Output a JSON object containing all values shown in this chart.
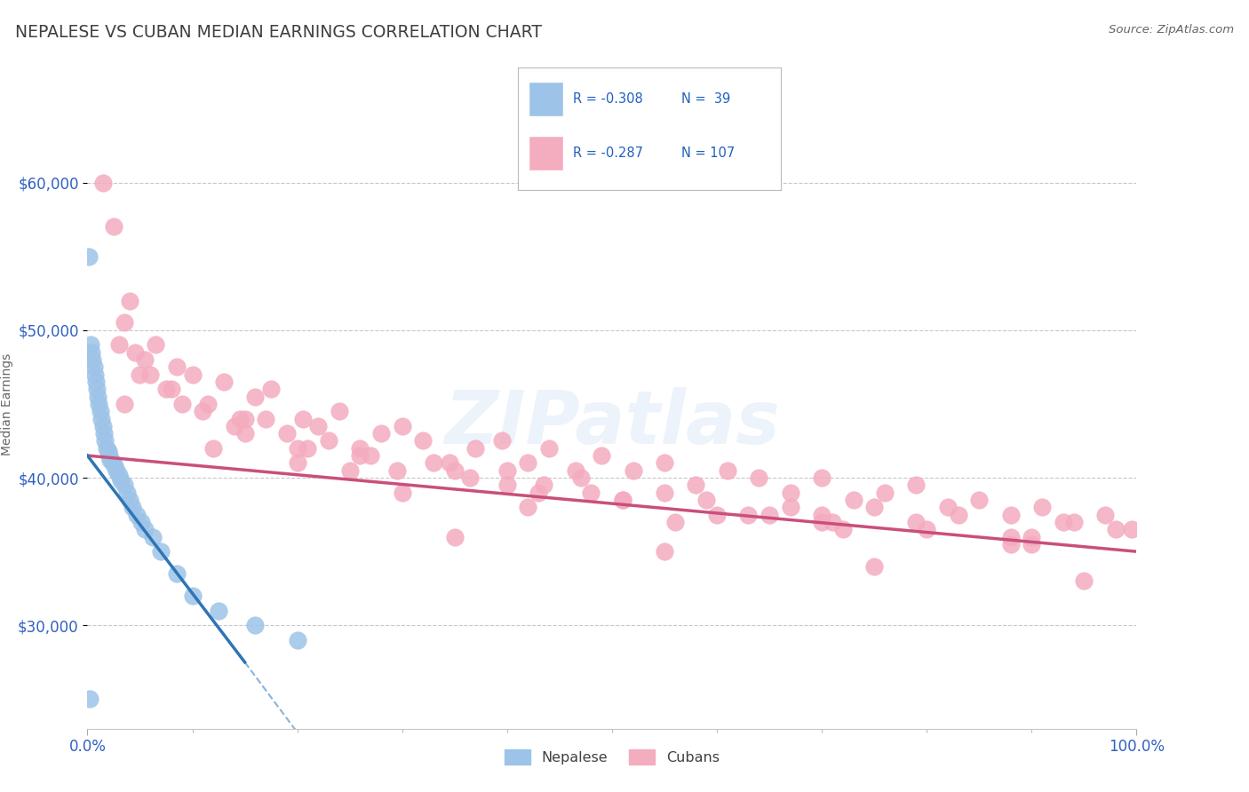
{
  "title": "NEPALESE VS CUBAN MEDIAN EARNINGS CORRELATION CHART",
  "source": "Source: ZipAtlas.com",
  "ylabel": "Median Earnings",
  "ymin": 23000,
  "ymax": 67000,
  "grid_values": [
    30000,
    40000,
    50000,
    60000
  ],
  "r_nepalese": -0.308,
  "n_nepalese": 39,
  "r_cubans": -0.287,
  "n_cubans": 107,
  "nepalese_color": "#9dc3e8",
  "cuban_color": "#f4acbf",
  "nepalese_line_color": "#2e75b6",
  "cuban_line_color": "#c94f7c",
  "legend_nepalese": "Nepalese",
  "legend_cubans": "Cubans",
  "watermark": "ZIPatlas",
  "nepalese_x": [
    0.1,
    0.3,
    0.4,
    0.5,
    0.6,
    0.7,
    0.8,
    0.9,
    1.0,
    1.1,
    1.2,
    1.3,
    1.5,
    1.6,
    1.7,
    1.8,
    2.0,
    2.1,
    2.2,
    2.4,
    2.6,
    2.8,
    3.0,
    3.2,
    3.5,
    3.8,
    4.0,
    4.3,
    4.7,
    5.1,
    5.5,
    6.2,
    7.0,
    8.5,
    10.0,
    12.5,
    16.0,
    20.0,
    0.2
  ],
  "nepalese_y": [
    55000,
    49000,
    48500,
    48000,
    47500,
    47000,
    46500,
    46000,
    45500,
    45000,
    44500,
    44000,
    43500,
    43000,
    42500,
    42000,
    41800,
    41500,
    41200,
    41000,
    40800,
    40500,
    40200,
    39800,
    39500,
    39000,
    38500,
    38000,
    37500,
    37000,
    36500,
    36000,
    35000,
    33500,
    32000,
    31000,
    30000,
    29000,
    25000
  ],
  "cuban_x": [
    1.5,
    2.5,
    3.5,
    4.0,
    5.0,
    6.5,
    7.5,
    8.5,
    10.0,
    11.5,
    13.0,
    14.5,
    16.0,
    17.5,
    19.0,
    20.5,
    22.0,
    24.0,
    26.0,
    28.0,
    30.0,
    32.0,
    34.5,
    37.0,
    39.5,
    42.0,
    44.0,
    46.5,
    49.0,
    52.0,
    55.0,
    58.0,
    61.0,
    64.0,
    67.0,
    70.0,
    73.0,
    76.0,
    79.0,
    82.0,
    85.0,
    88.0,
    91.0,
    94.0,
    97.0,
    99.5,
    3.0,
    5.5,
    8.0,
    11.0,
    14.0,
    17.0,
    20.0,
    23.0,
    26.0,
    29.5,
    33.0,
    36.5,
    40.0,
    43.5,
    47.0,
    51.0,
    55.0,
    59.0,
    63.0,
    67.0,
    71.0,
    75.0,
    79.0,
    83.0,
    88.0,
    93.0,
    98.0,
    4.5,
    9.0,
    15.0,
    21.0,
    27.0,
    35.0,
    43.0,
    51.0,
    60.0,
    70.0,
    80.0,
    90.0,
    6.0,
    12.0,
    20.0,
    30.0,
    42.0,
    56.0,
    72.0,
    88.0,
    3.5,
    25.0,
    48.0,
    70.0,
    90.0,
    15.0,
    40.0,
    65.0,
    35.0,
    55.0,
    75.0,
    95.0
  ],
  "cuban_y": [
    60000,
    57000,
    50500,
    52000,
    47000,
    49000,
    46000,
    47500,
    47000,
    45000,
    46500,
    44000,
    45500,
    46000,
    43000,
    44000,
    43500,
    44500,
    42000,
    43000,
    43500,
    42500,
    41000,
    42000,
    42500,
    41000,
    42000,
    40500,
    41500,
    40500,
    41000,
    39500,
    40500,
    40000,
    39000,
    40000,
    38500,
    39000,
    39500,
    38000,
    38500,
    37500,
    38000,
    37000,
    37500,
    36500,
    49000,
    48000,
    46000,
    44500,
    43500,
    44000,
    42000,
    42500,
    41500,
    40500,
    41000,
    40000,
    40500,
    39500,
    40000,
    38500,
    39000,
    38500,
    37500,
    38000,
    37000,
    38000,
    37000,
    37500,
    36000,
    37000,
    36500,
    48500,
    45000,
    44000,
    42000,
    41500,
    40500,
    39000,
    38500,
    37500,
    37000,
    36500,
    35500,
    47000,
    42000,
    41000,
    39000,
    38000,
    37000,
    36500,
    35500,
    45000,
    40500,
    39000,
    37500,
    36000,
    43000,
    39500,
    37500,
    36000,
    35000,
    34000,
    33000
  ]
}
